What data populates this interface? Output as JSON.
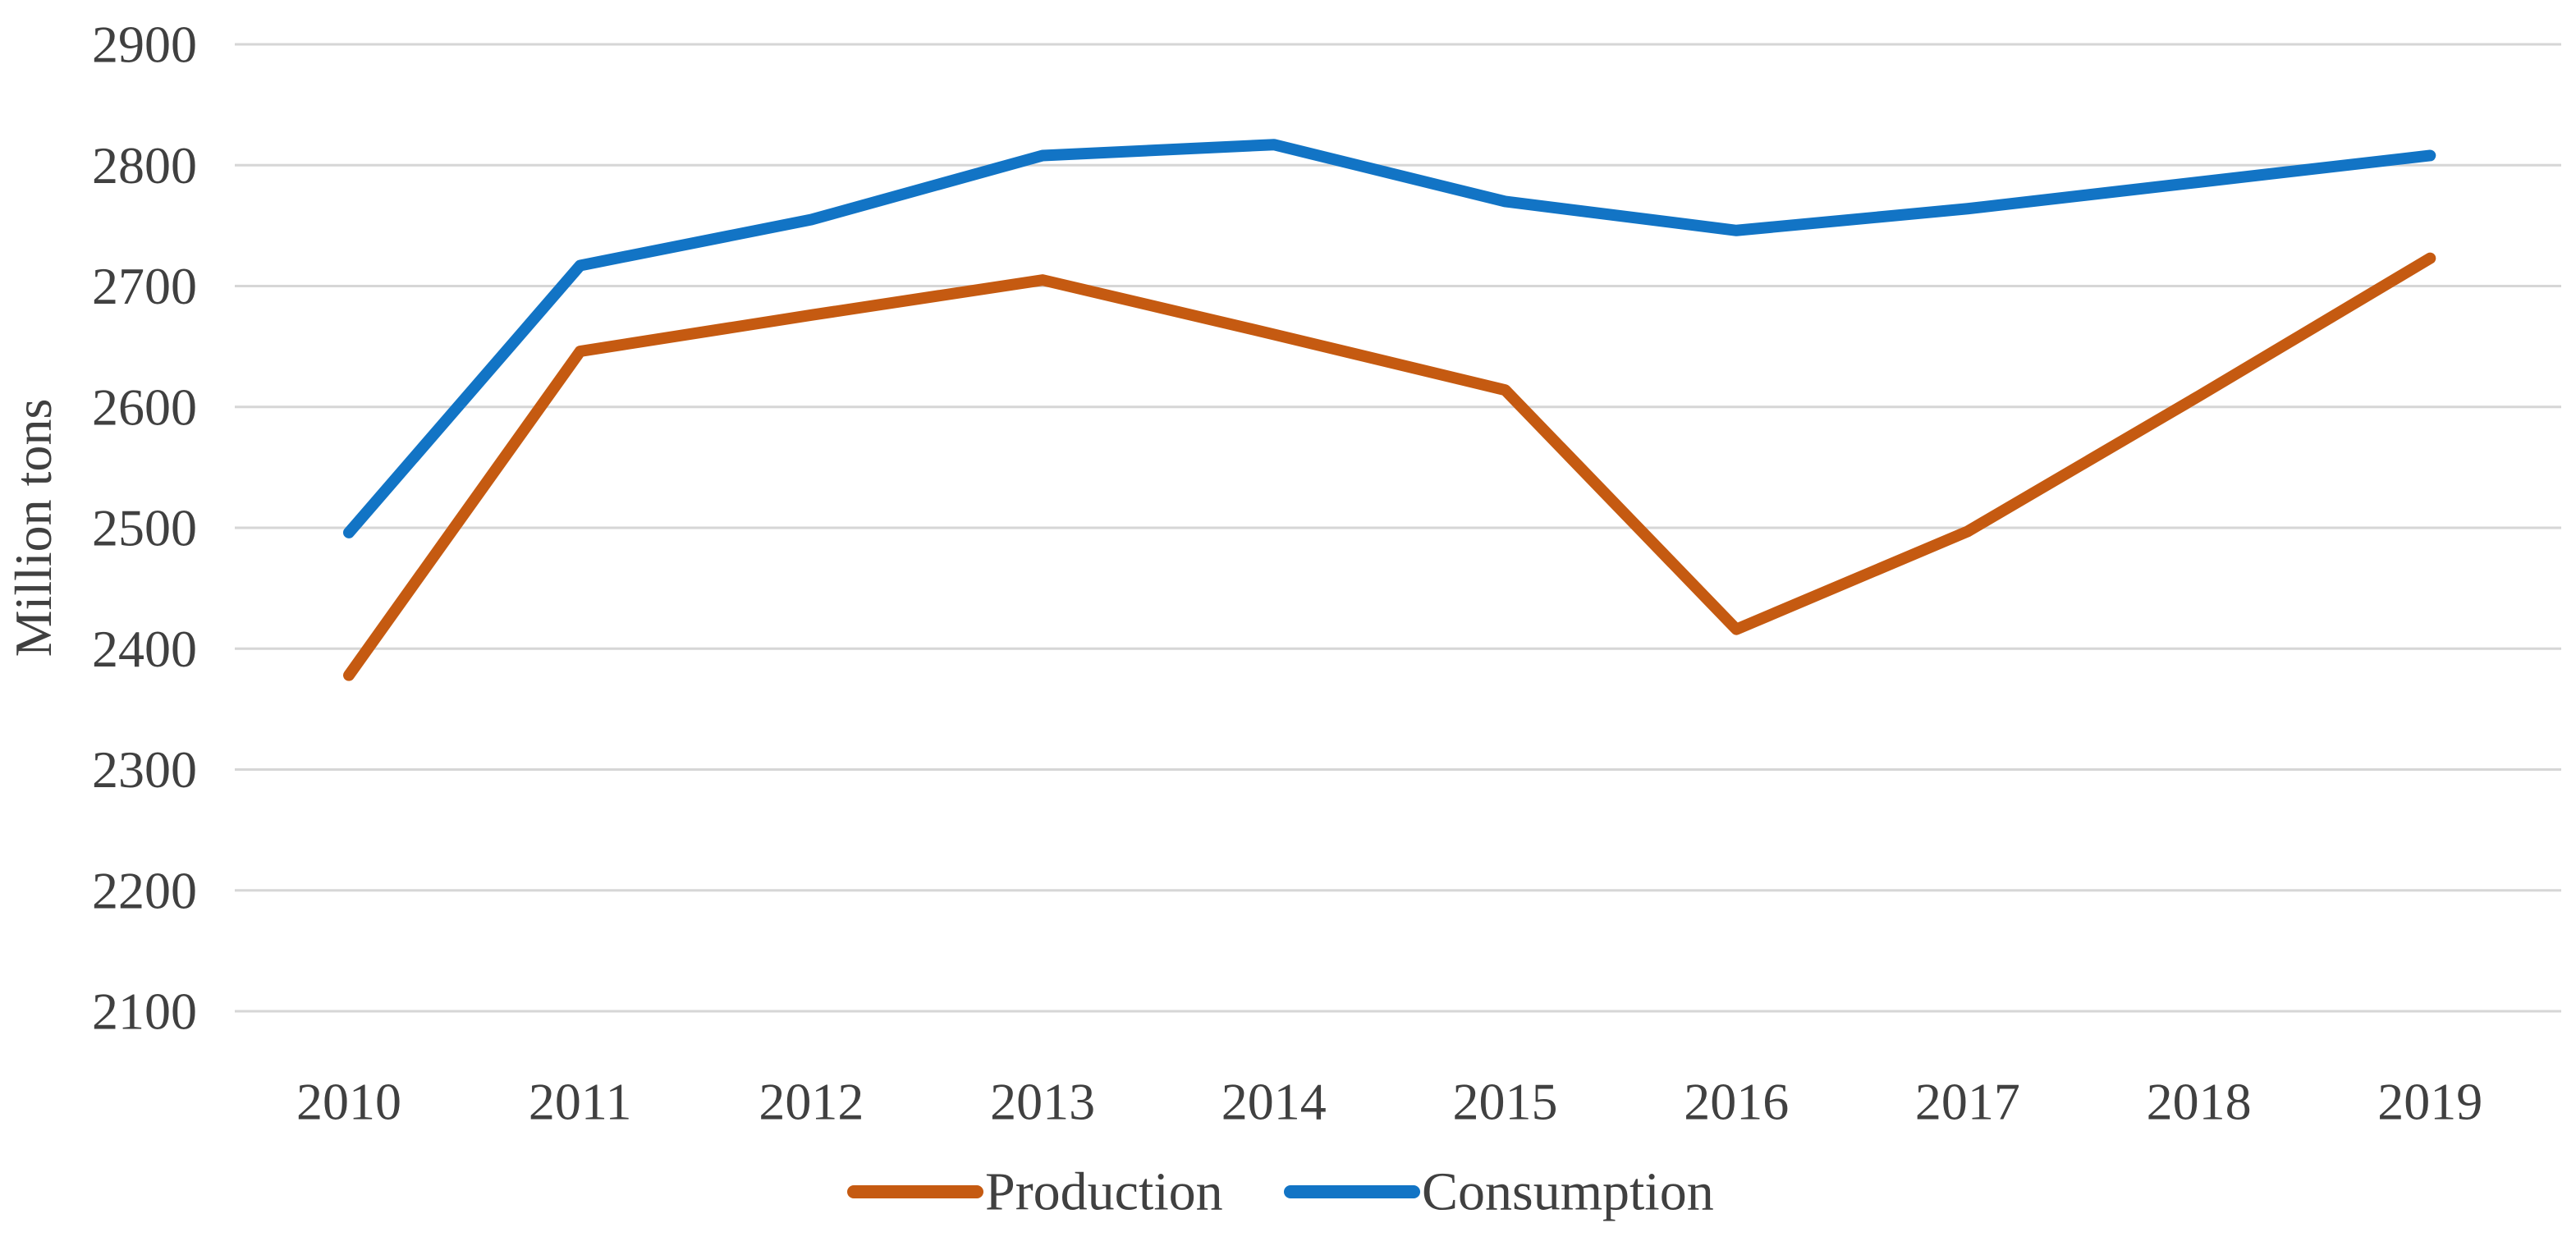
{
  "chart_data": {
    "type": "line",
    "title": "",
    "xlabel": "",
    "ylabel": "Million tons",
    "x_categories": [
      "2010",
      "2011",
      "2012",
      "2013",
      "2014",
      "2015",
      "2016",
      "2017",
      "2018",
      "2019"
    ],
    "series": [
      {
        "name": "Production",
        "color": "#C55A11",
        "values": [
          2378,
          2646,
          2676,
          2705,
          2660,
          2614,
          2416,
          2497,
          2609,
          2723
        ]
      },
      {
        "name": "Consumption",
        "color": "#1274C5",
        "values": [
          2496,
          2717,
          2755,
          2808,
          2817,
          2770,
          2746,
          2764,
          2786,
          2808
        ]
      }
    ],
    "ylim": [
      2100,
      2900
    ],
    "ytick_step": 100,
    "ytick_labels": [
      "2900",
      "2800",
      "2700",
      "2600",
      "2500",
      "2400",
      "2300",
      "2200",
      "2100"
    ],
    "grid": true,
    "legend_position": "bottom",
    "styles": {
      "gridline_color": "#D6D6D6",
      "text_color": "#404040",
      "background": "#FFFFFF",
      "line_width": 14,
      "gridline_width": 3
    }
  }
}
